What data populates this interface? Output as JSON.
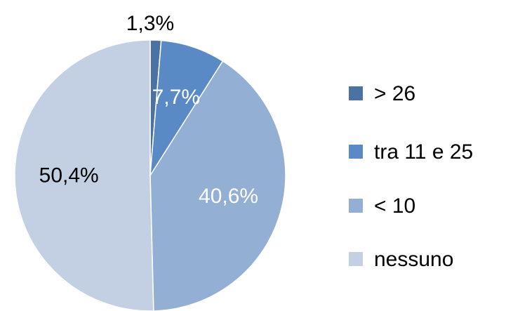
{
  "chart_data": {
    "type": "pie",
    "categories": [
      "> 26",
      "tra 11 e 25",
      "< 10",
      "nessuno"
    ],
    "values": [
      1.3,
      7.7,
      40.6,
      50.4
    ],
    "value_labels": [
      "1,3%",
      "7,7%",
      "40,6%",
      "50,4%"
    ],
    "colors": [
      "#4a72a3",
      "#5a8ac6",
      "#93afd4",
      "#c3cfe3"
    ],
    "label_colors": [
      "#000000",
      "#ffffff",
      "#ffffff",
      "#000000"
    ],
    "legend": "right"
  }
}
